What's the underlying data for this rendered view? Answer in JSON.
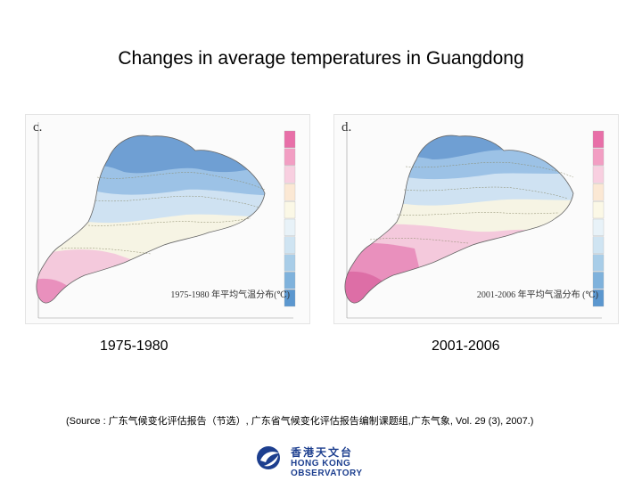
{
  "title": "Changes in average temperatures in Guangdong",
  "maps": [
    {
      "letter": "c.",
      "period": "1975-1980",
      "caption": "1975-1980 年平均气温分布(℃)"
    },
    {
      "letter": "d.",
      "period": "2001-2006",
      "caption": "2001-2006 年平均气温分布 (℃)"
    }
  ],
  "legend_colors": [
    "#e86fa8",
    "#f29ec3",
    "#f8cfe0",
    "#fbe8d4",
    "#fbf8e6",
    "#e8f2f8",
    "#cfe4f2",
    "#a8cde8",
    "#7fb2dc",
    "#5b97cf"
  ],
  "zone_colors": {
    "cold": "#6f9fd3",
    "cool": "#9cc2e6",
    "mild": "#cfe2f2",
    "neutral": "#f6f4e4",
    "warm": "#f4c9dc",
    "hot": "#e990bd",
    "hottest": "#dd6ea6"
  },
  "source": "(Source : 广东气候变化评估报告（节选）, 广东省气候变化评估报告编制课题组,广东气象, Vol. 29 (3), 2007.)",
  "logo": {
    "chinese": "香港天文台",
    "english": "HONG KONG OBSERVATORY"
  }
}
